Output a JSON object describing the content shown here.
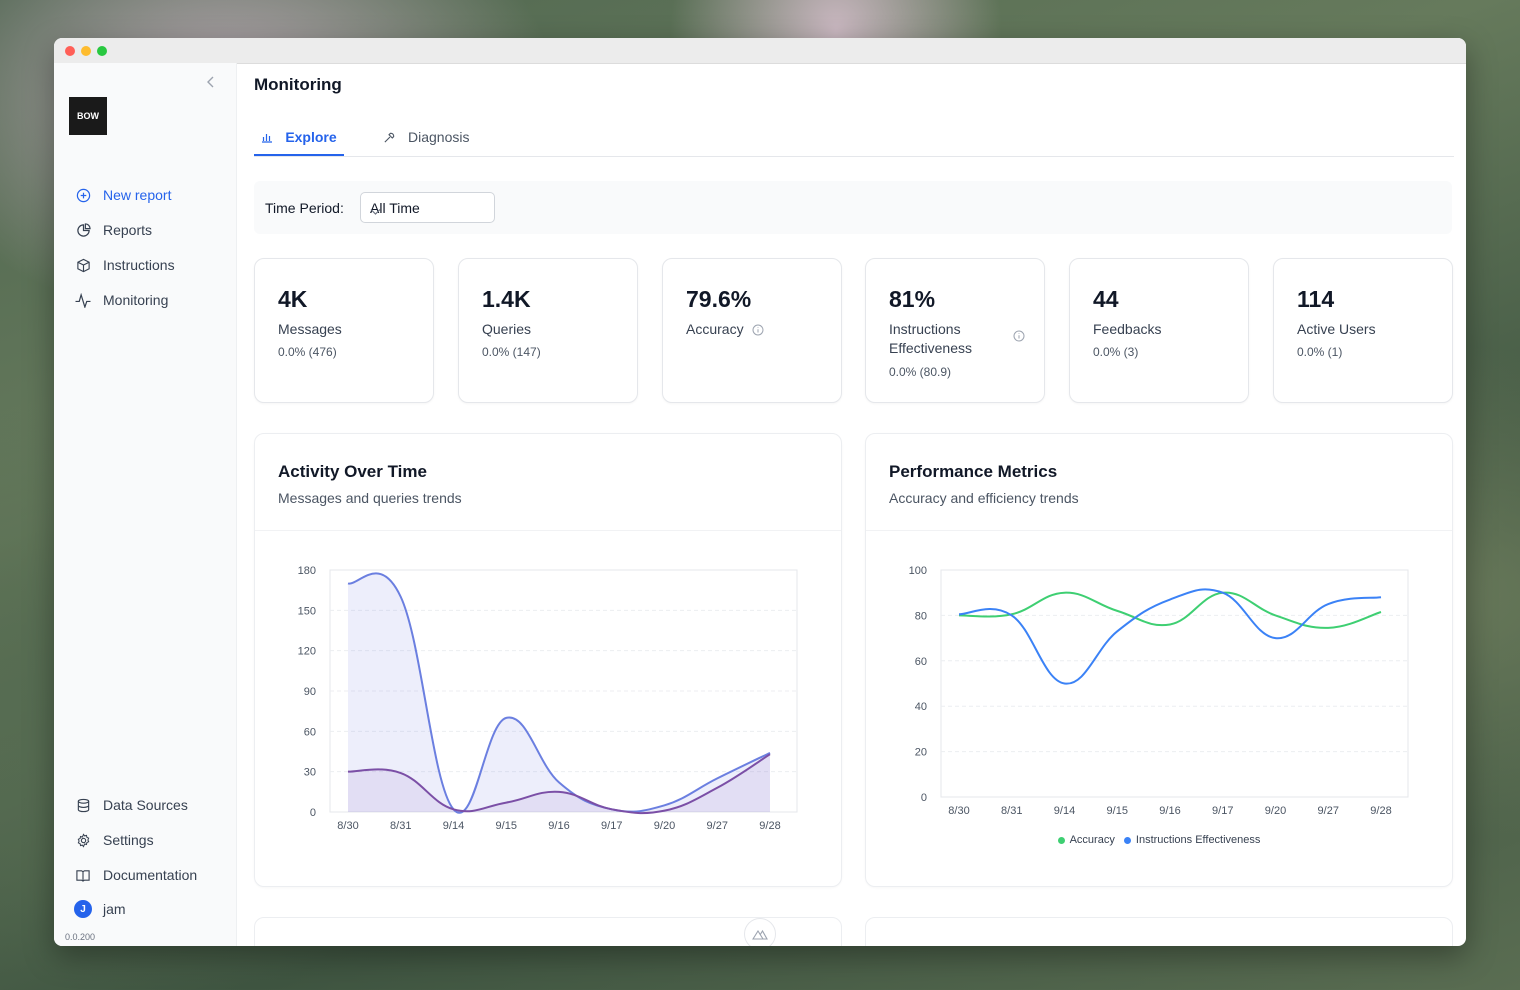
{
  "sidebar": {
    "logo": "BOW",
    "items": [
      {
        "label": "New report",
        "icon": "plus-circle-icon"
      },
      {
        "label": "Reports",
        "icon": "pie-chart-icon"
      },
      {
        "label": "Instructions",
        "icon": "cube-icon"
      },
      {
        "label": "Monitoring",
        "icon": "activity-icon"
      }
    ],
    "bottom_items": [
      {
        "label": "Data Sources",
        "icon": "database-icon"
      },
      {
        "label": "Settings",
        "icon": "gear-icon"
      },
      {
        "label": "Documentation",
        "icon": "book-icon"
      }
    ],
    "user": {
      "initial": "J",
      "name": "jam"
    },
    "version": "0.0.200"
  },
  "header": {
    "title": "Monitoring"
  },
  "tabs": [
    {
      "label": "Explore",
      "icon": "bar-chart-icon",
      "active": true
    },
    {
      "label": "Diagnosis",
      "icon": "wrench-icon",
      "active": false
    }
  ],
  "filter": {
    "label": "Time Period:",
    "value": "All Time"
  },
  "stats": [
    {
      "value": "4K",
      "label": "Messages",
      "delta": "0.0% (476)"
    },
    {
      "value": "1.4K",
      "label": "Queries",
      "delta": "0.0% (147)"
    },
    {
      "value": "79.6%",
      "label": "Accuracy",
      "delta": ""
    },
    {
      "value": "81%",
      "label": "Instructions Effectiveness",
      "delta": "0.0% (80.9)"
    },
    {
      "value": "44",
      "label": "Feedbacks",
      "delta": "0.0% (3)"
    },
    {
      "value": "114",
      "label": "Active Users",
      "delta": "0.0% (1)"
    }
  ],
  "cards": {
    "activity": {
      "title": "Activity Over Time",
      "subtitle": "Messages and queries trends"
    },
    "performance": {
      "title": "Performance Metrics",
      "subtitle": "Accuracy and efficiency trends"
    }
  },
  "colors": {
    "accent": "#2563eb",
    "messages": "#6b7fe0",
    "queries": "#7b4fa6",
    "accuracy": "#3ecf72",
    "effectiveness": "#3b82f6"
  },
  "chart_data": [
    {
      "type": "area",
      "categories": [
        "8/30",
        "8/31",
        "9/14",
        "9/15",
        "9/16",
        "9/17",
        "9/20",
        "9/27",
        "9/28"
      ],
      "series": [
        {
          "values": [
            170,
            160,
            2,
            70,
            22,
            2,
            5,
            25,
            44
          ]
        },
        {
          "values": [
            30,
            29,
            2,
            7,
            15,
            2,
            1,
            18,
            43
          ]
        }
      ],
      "yticks": [
        0,
        30,
        60,
        90,
        120,
        150,
        180
      ],
      "ylim": [
        0,
        180
      ],
      "grid": true
    },
    {
      "type": "line",
      "categories": [
        "8/30",
        "8/31",
        "9/14",
        "9/15",
        "9/16",
        "9/17",
        "9/20",
        "9/27",
        "9/28"
      ],
      "series": [
        {
          "name": "Accuracy",
          "values": [
            80,
            80.5,
            90,
            82,
            76,
            90,
            80,
            74.5,
            81.5
          ]
        },
        {
          "name": "Instructions Effectiveness",
          "values": [
            80.5,
            80,
            50,
            73,
            87,
            90,
            70,
            85,
            88
          ]
        }
      ],
      "yticks": [
        0,
        20,
        40,
        60,
        80,
        100
      ],
      "ylim": [
        0,
        100
      ],
      "grid": true,
      "legend": "bottom"
    }
  ]
}
